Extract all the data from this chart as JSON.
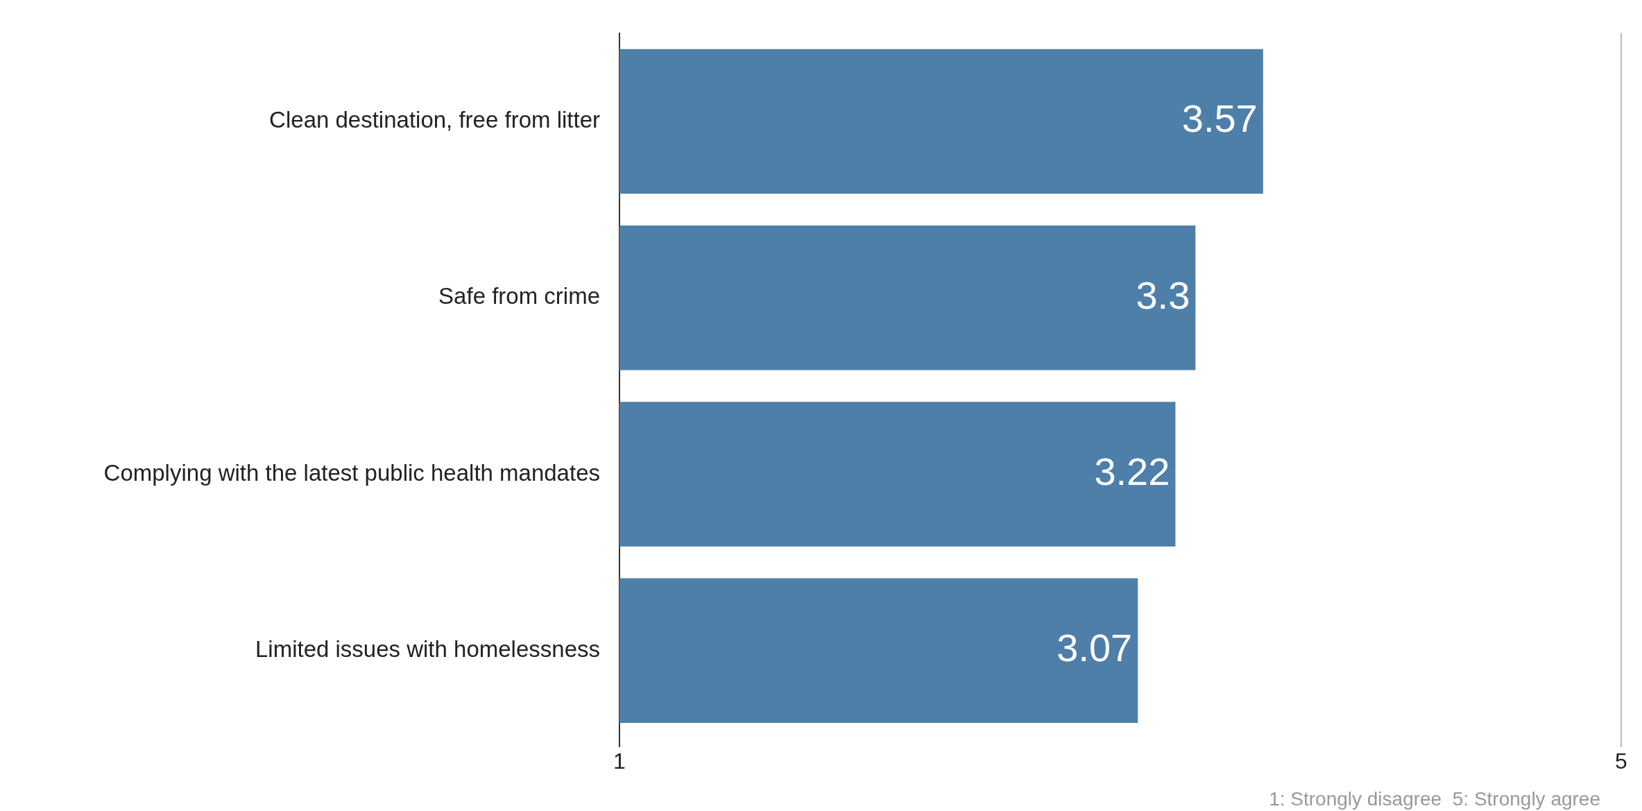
{
  "chart_data": {
    "type": "bar",
    "orientation": "horizontal",
    "categories": [
      "Clean destination, free from litter",
      "Safe from crime",
      "Complying with the latest public health mandates",
      "Limited issues with homelessness"
    ],
    "values": [
      3.57,
      3.3,
      3.22,
      3.07
    ],
    "color": "#4d7fa8",
    "xlim": [
      1,
      5
    ],
    "xticks": [
      1,
      5
    ],
    "data_labels": true,
    "annotations": [
      "1: Strongly disagree  5: Strongly agree"
    ]
  }
}
